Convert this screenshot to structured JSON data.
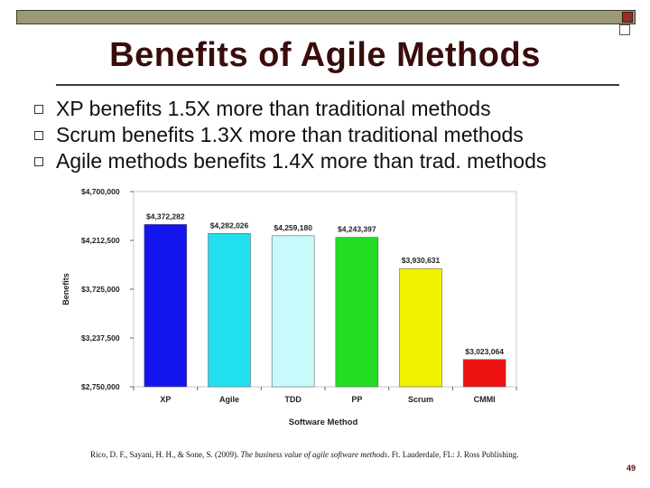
{
  "slide": {
    "title": "Benefits of Agile Methods",
    "bullets": [
      "XP benefits 1.5X more than traditional methods",
      "Scrum benefits 1.3X more than traditional methods",
      "Agile methods benefits 1.4X more than trad. methods"
    ],
    "citation_pre": "Rico, D. F., Sayani, H. H., & Sone, S. (2009). ",
    "citation_title": "The business value of agile software methods",
    "citation_post": ". Ft. Lauderdale, FL: J. Ross Publishing.",
    "page_number": "49",
    "colors": {
      "title": "#3a0d0d",
      "bar_frame": "#9a9a76",
      "corner_square": "#9a2a2a"
    }
  },
  "chart_data": {
    "type": "bar",
    "title": "",
    "xlabel": "Software Method",
    "ylabel": "Benefits",
    "ylim": [
      2750000,
      4700000
    ],
    "yticks": [
      2750000,
      3237500,
      3725000,
      4212500,
      4700000
    ],
    "ytick_labels": [
      "$2,750,000",
      "$3,237,500",
      "$3,725,000",
      "$4,212,500",
      "$4,700,000"
    ],
    "categories": [
      "XP",
      "Agile",
      "TDD",
      "PP",
      "Scrum",
      "CMMI"
    ],
    "values": [
      4372282,
      4282026,
      4259180,
      4243397,
      3930631,
      3023064
    ],
    "value_labels": [
      "$4,372,282",
      "$4,282,026",
      "$4,259,180",
      "$4,243,397",
      "$3,930,631",
      "$3,023,064"
    ],
    "colors": [
      "#1515f0",
      "#22e0f0",
      "#c8fafc",
      "#22dd22",
      "#f2f200",
      "#ee1111"
    ],
    "grid": false,
    "legend": "none"
  }
}
